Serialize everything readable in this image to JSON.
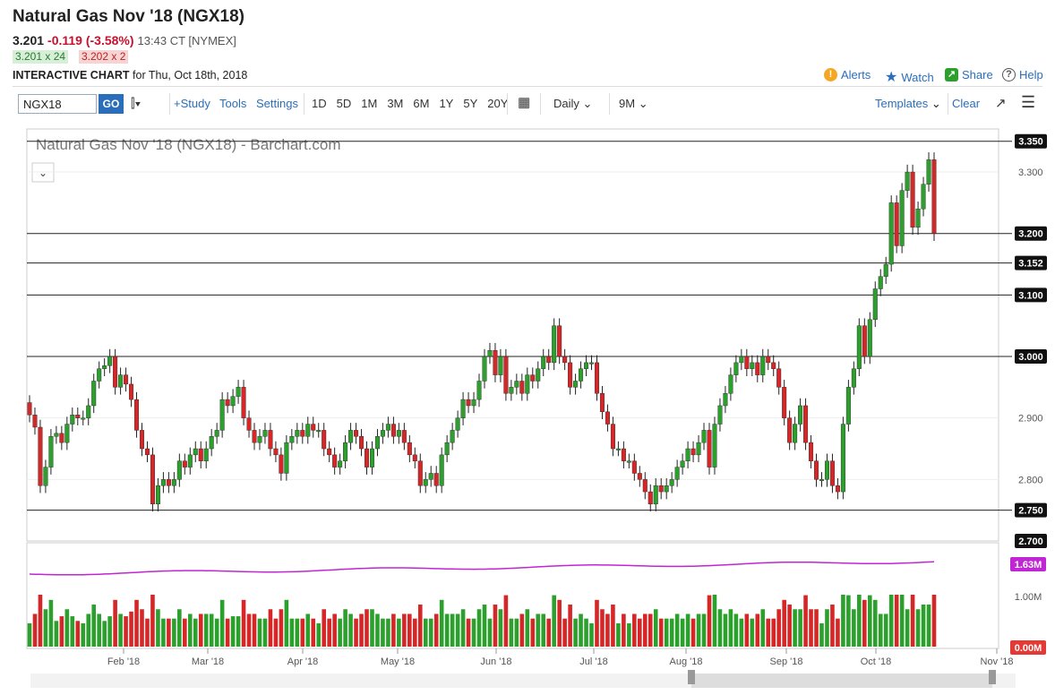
{
  "header": {
    "title": "Natural Gas Nov '18 (NGX18)",
    "last": "3.201",
    "change": "-0.119 (-3.58%)",
    "time": "13:43 CT [NYMEX]",
    "bid": "3.201 x 24",
    "ask": "3.202 x 2",
    "interactive_label": "INTERACTIVE CHART",
    "interactive_date": "for Thu, Oct 18th, 2018"
  },
  "actions": {
    "alerts": "Alerts",
    "watch": "Watch",
    "share": "Share",
    "help": "Help"
  },
  "toolbar": {
    "symbol": "NGX18",
    "go": "GO",
    "study": "+Study",
    "tools": "Tools",
    "settings": "Settings",
    "periods": [
      "1D",
      "5D",
      "1M",
      "3M",
      "6M",
      "1Y",
      "5Y",
      "20Y"
    ],
    "interval": "Daily",
    "range": "9M",
    "templates": "Templates",
    "clear": "Clear"
  },
  "colors": {
    "up": "#2ca02c",
    "down": "#d62728",
    "ma": "#c026d3",
    "accent": "#2a6ebb"
  },
  "chart_data": {
    "type": "candlestick",
    "title": "Natural Gas Nov '18 (NGX18) - Barchart.com",
    "ylim": [
      2.7,
      3.37
    ],
    "y_ticks": [
      "3.300",
      "2.900",
      "2.800"
    ],
    "hlines": [
      3.35,
      3.2,
      3.152,
      3.1,
      3.0,
      2.75
    ],
    "price_labels": [
      "3.350",
      "3.200",
      "3.152",
      "3.100",
      "3.000",
      "2.750",
      "2.700"
    ],
    "x_labels": [
      "Feb '18",
      "Mar '18",
      "Apr '18",
      "May '18",
      "Jun '18",
      "Jul '18",
      "Aug '18",
      "Sep '18",
      "Oct '18",
      "Nov '18"
    ],
    "series": [
      {
        "values": [
          2.905,
          2.885,
          2.79,
          2.82,
          2.87,
          2.875,
          2.86,
          2.89,
          2.905,
          2.9,
          2.9,
          2.92,
          2.96,
          2.98,
          2.985,
          3.0,
          2.95,
          2.97,
          2.955,
          2.93,
          2.88,
          2.85,
          2.84,
          2.76,
          2.79,
          2.8,
          2.79,
          2.8,
          2.83,
          2.82,
          2.84,
          2.85,
          2.83,
          2.85,
          2.87,
          2.88,
          2.93,
          2.92,
          2.935,
          2.95,
          2.9,
          2.88,
          2.86,
          2.87,
          2.88,
          2.85,
          2.84,
          2.81,
          2.86,
          2.87,
          2.88,
          2.87,
          2.89,
          2.88,
          2.88,
          2.85,
          2.84,
          2.82,
          2.83,
          2.86,
          2.88,
          2.87,
          2.85,
          2.82,
          2.85,
          2.87,
          2.88,
          2.89,
          2.87,
          2.88,
          2.86,
          2.84,
          2.83,
          2.79,
          2.8,
          2.81,
          2.79,
          2.84,
          2.86,
          2.88,
          2.9,
          2.93,
          2.92,
          2.93,
          2.96,
          3.0,
          3.01,
          2.97,
          3.0,
          2.94,
          2.95,
          2.96,
          2.94,
          2.97,
          2.96,
          2.98,
          3.0,
          2.99,
          3.05,
          3.0,
          2.99,
          2.95,
          2.96,
          2.98,
          2.99,
          2.99,
          2.94,
          2.91,
          2.89,
          2.85,
          2.85,
          2.83,
          2.83,
          2.81,
          2.8,
          2.78,
          2.76,
          2.79,
          2.78,
          2.79,
          2.8,
          2.82,
          2.83,
          2.85,
          2.84,
          2.86,
          2.88,
          2.82,
          2.89,
          2.92,
          2.94,
          2.97,
          2.99,
          3.0,
          2.98,
          2.99,
          2.97,
          3.0,
          2.99,
          2.98,
          2.95,
          2.9,
          2.86,
          2.89,
          2.92,
          2.86,
          2.83,
          2.8,
          2.8,
          2.83,
          2.79,
          2.78,
          2.89,
          2.95,
          2.98,
          3.05,
          3.0,
          3.06,
          3.11,
          3.13,
          3.15,
          3.25,
          3.18,
          3.27,
          3.3,
          3.21,
          3.24,
          3.28,
          3.32,
          3.2
        ]
      }
    ],
    "volume_axis": [
      "1.63M",
      "1.00M",
      "0.00M"
    ]
  }
}
